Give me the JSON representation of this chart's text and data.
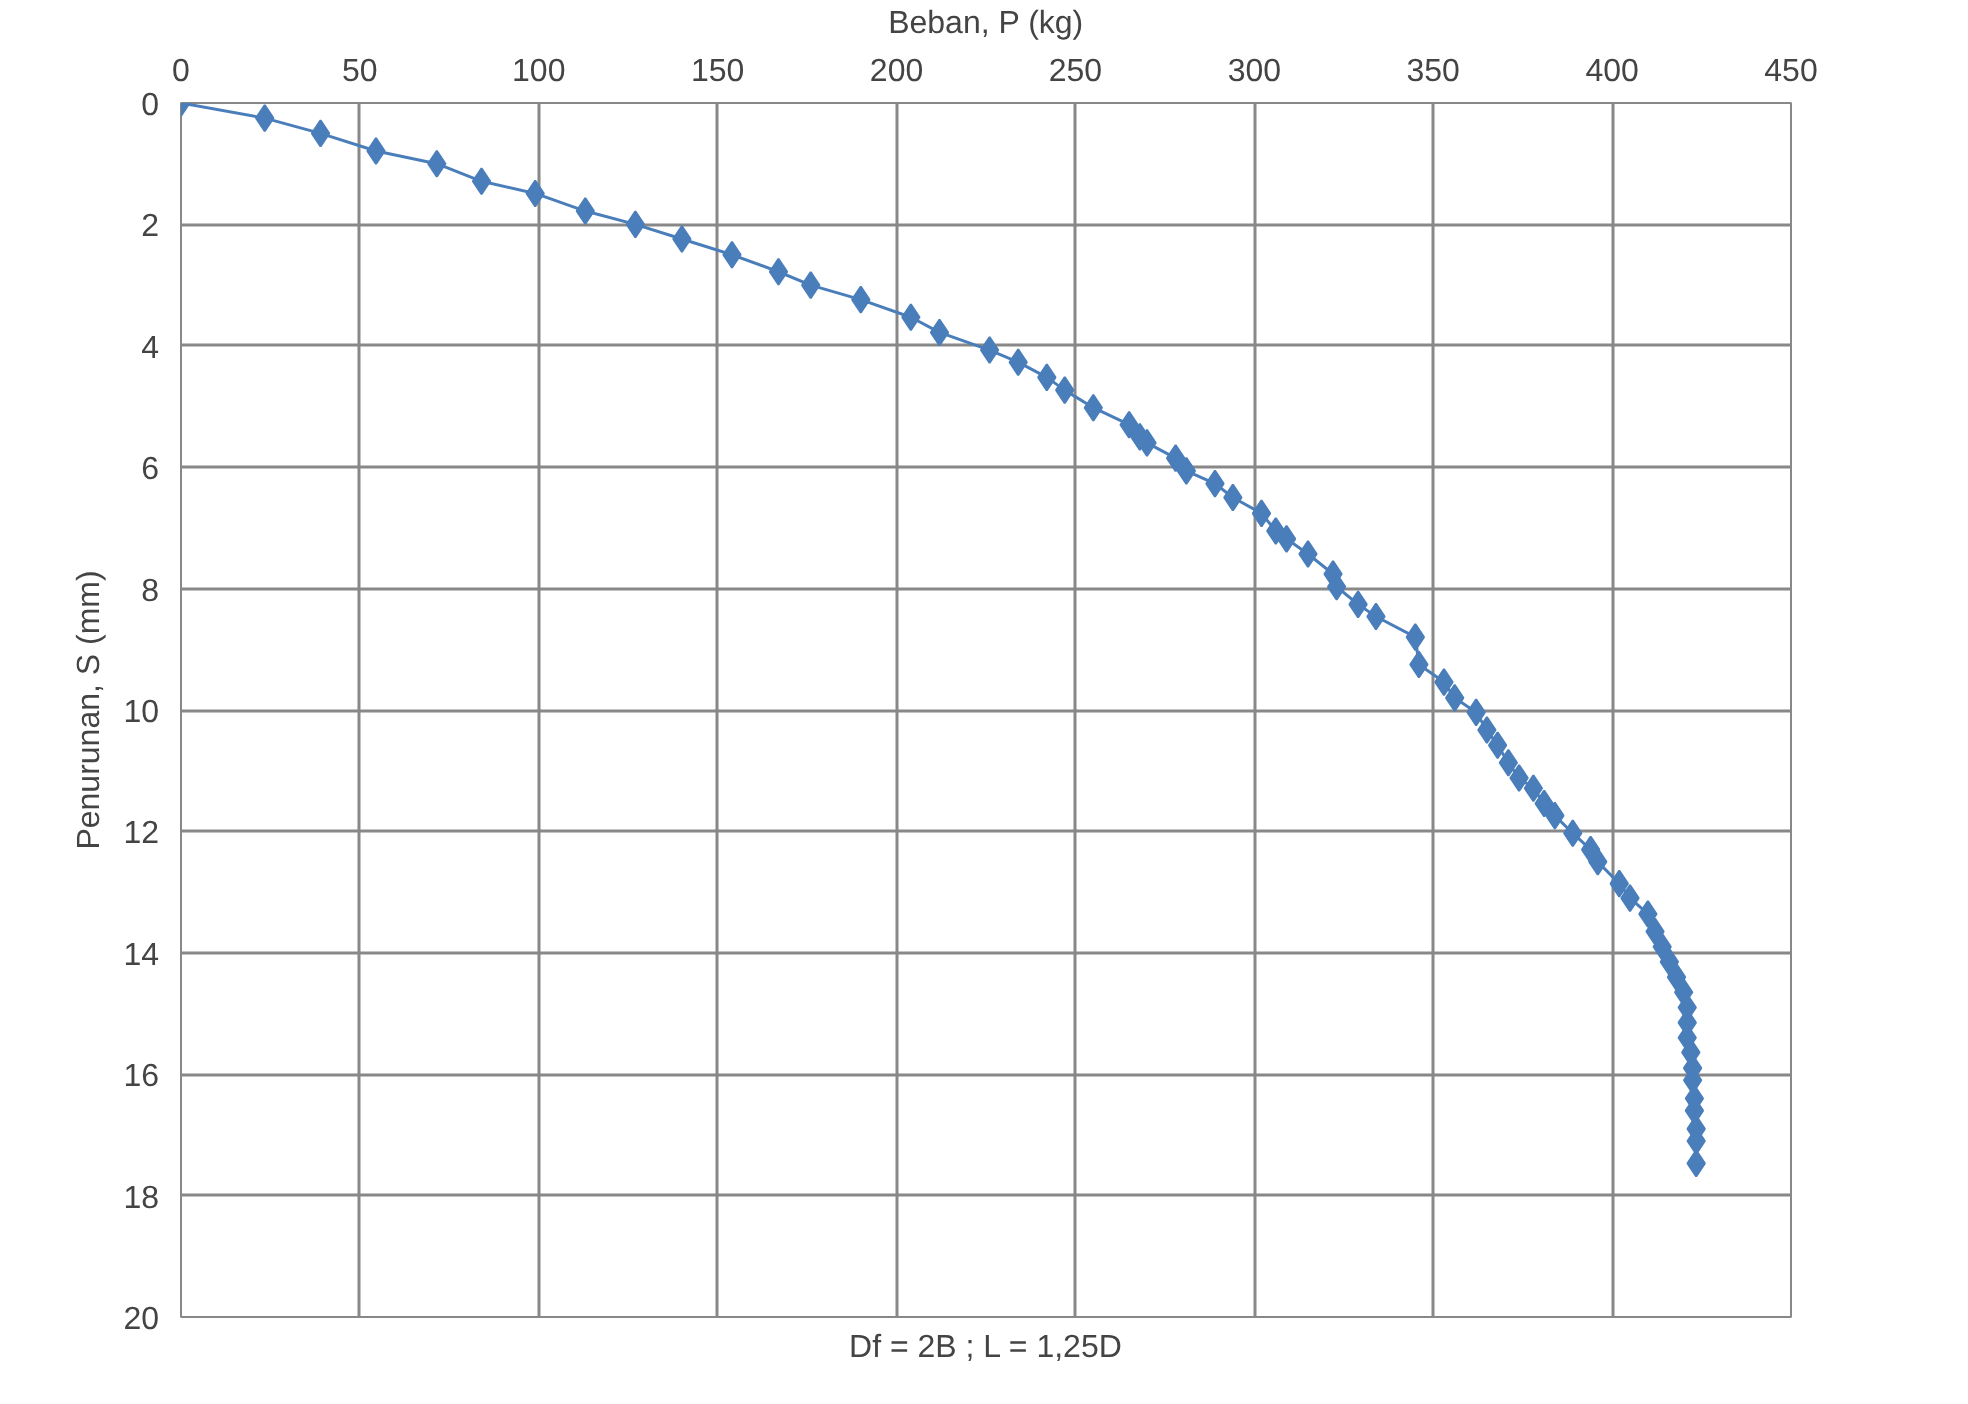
{
  "chart_data": {
    "type": "line",
    "xlabel": "Beban, P (kg)",
    "ylabel": "Penurunan, S (mm)",
    "annotations": [
      "Df = 2B ; L = 1,25D"
    ],
    "xlim": [
      0,
      450
    ],
    "xticks": [
      0,
      50,
      100,
      150,
      200,
      250,
      300,
      350,
      400,
      450
    ],
    "ylim": [
      20,
      0
    ],
    "yticks": [
      0,
      2,
      4,
      6,
      8,
      10,
      12,
      14,
      16,
      18,
      20
    ],
    "grid": true,
    "marker": "diamond",
    "line_style": "solid",
    "series": [
      {
        "color": "#4a7ebb",
        "x": [
          0,
          23.4,
          39,
          54.5,
          71.5,
          84,
          99,
          113,
          127,
          140,
          154,
          167,
          176,
          190,
          204,
          212,
          226,
          234,
          242,
          247,
          255,
          265,
          268,
          270,
          278,
          281,
          289,
          294,
          302,
          306,
          309,
          315,
          322,
          323,
          329,
          334,
          345,
          346,
          353,
          356,
          362,
          365,
          368,
          371,
          374,
          378,
          381,
          384,
          389,
          394,
          396,
          402,
          405,
          410,
          412,
          414,
          416,
          418,
          420,
          421,
          421,
          421,
          422,
          422.5,
          422.5,
          423,
          423,
          423.5,
          423.5,
          423.5
        ],
        "values": [
          0,
          0.25,
          0.5,
          0.79,
          1.0,
          1.29,
          1.49,
          1.78,
          2.0,
          2.24,
          2.5,
          2.78,
          3.0,
          3.24,
          3.53,
          3.78,
          4.07,
          4.27,
          4.52,
          4.73,
          5.02,
          5.3,
          5.5,
          5.6,
          5.85,
          6.06,
          6.27,
          6.5,
          6.76,
          7.05,
          7.18,
          7.43,
          7.76,
          7.97,
          8.26,
          8.46,
          8.8,
          9.25,
          9.54,
          9.8,
          10.04,
          10.33,
          10.58,
          10.87,
          11.12,
          11.29,
          11.54,
          11.74,
          12.03,
          12.3,
          12.5,
          12.86,
          13.1,
          13.36,
          13.65,
          13.9,
          14.15,
          14.4,
          14.65,
          14.9,
          15.15,
          15.4,
          15.64,
          15.9,
          16.1,
          16.4,
          16.6,
          16.9,
          17.1,
          17.47
        ]
      }
    ]
  }
}
